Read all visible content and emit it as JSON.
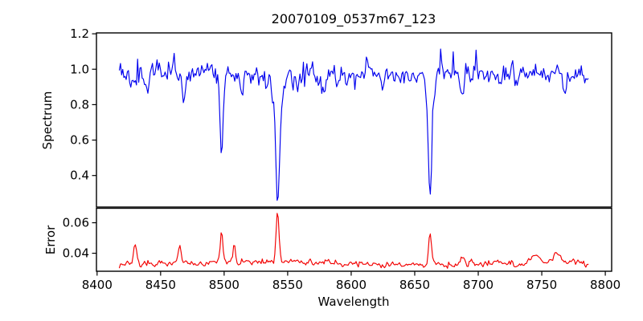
{
  "chart_data": {
    "type": "line",
    "title": "20070109_0537m67_123",
    "xlabel": "Wavelength",
    "xlim": [
      8399.5,
      8805.0
    ],
    "xticks": [
      8400,
      8450,
      8500,
      8550,
      8600,
      8650,
      8700,
      8750,
      8800
    ],
    "x_data_range": [
      8417.5,
      8786.5
    ],
    "sampling_step": 0.9,
    "legend": "none",
    "grid": false,
    "subplots": [
      {
        "name": "spectrum",
        "ylabel": "Spectrum",
        "color": "#0000ee",
        "ylim": [
          0.222,
          1.205
        ],
        "yticks": [
          0.4,
          0.6,
          0.8,
          1.0,
          1.2
        ],
        "ytick_labels": [
          "0.4",
          "0.6",
          "0.8",
          "1.0",
          "1.2"
        ],
        "continuum": 0.972,
        "noise_sigma": 0.031,
        "seed": 1337,
        "absorption_lines": [
          {
            "center": 8498.0,
            "depth": 0.46,
            "sigma": 1.1,
            "wing_depth": 0.05,
            "wing_sigma": 3.0
          },
          {
            "center": 8542.1,
            "depth": 0.71,
            "sigma": 1.5,
            "wing_depth": 0.1,
            "wing_sigma": 4.5
          },
          {
            "center": 8662.1,
            "depth": 0.68,
            "sigma": 1.4,
            "wing_depth": 0.09,
            "wing_sigma": 4.0
          },
          {
            "center": 8427.0,
            "depth": 0.1,
            "sigma": 1.2
          },
          {
            "center": 8440.0,
            "depth": 0.13,
            "sigma": 1.4
          },
          {
            "center": 8468.0,
            "depth": 0.16,
            "sigma": 1.2
          },
          {
            "center": 8514.0,
            "depth": 0.13,
            "sigma": 1.2
          },
          {
            "center": 8558.0,
            "depth": 0.07,
            "sigma": 1.2
          },
          {
            "center": 8578.0,
            "depth": 0.1,
            "sigma": 1.3
          },
          {
            "center": 8625.0,
            "depth": 0.08,
            "sigma": 1.2
          },
          {
            "center": 8688.0,
            "depth": 0.11,
            "sigma": 1.3
          },
          {
            "center": 8717.0,
            "depth": 0.07,
            "sigma": 1.2
          },
          {
            "center": 8768.0,
            "depth": 0.09,
            "sigma": 1.2
          }
        ]
      },
      {
        "name": "error",
        "ylabel": "Error",
        "color": "#f20000",
        "ylim": [
          0.0282,
          0.0695
        ],
        "yticks": [
          0.04,
          0.06
        ],
        "ytick_labels": [
          "0.04",
          "0.06"
        ],
        "baseline": 0.0335,
        "noise_sigma": 0.0011,
        "seed": 2024,
        "spikes": [
          {
            "center": 8430.0,
            "height": 0.0125,
            "sigma": 1.1
          },
          {
            "center": 8465.0,
            "height": 0.0125,
            "sigma": 1.0
          },
          {
            "center": 8498.0,
            "height": 0.0205,
            "sigma": 1.0
          },
          {
            "center": 8508.0,
            "height": 0.0125,
            "sigma": 0.9
          },
          {
            "center": 8542.1,
            "height": 0.034,
            "sigma": 1.2
          },
          {
            "center": 8662.1,
            "height": 0.0235,
            "sigma": 1.1
          },
          {
            "center": 8688.0,
            "height": 0.004,
            "sigma": 1.5
          },
          {
            "center": 8745.0,
            "height": 0.005,
            "sigma": 3.0
          },
          {
            "center": 8762.0,
            "height": 0.006,
            "sigma": 2.0
          }
        ]
      }
    ]
  }
}
